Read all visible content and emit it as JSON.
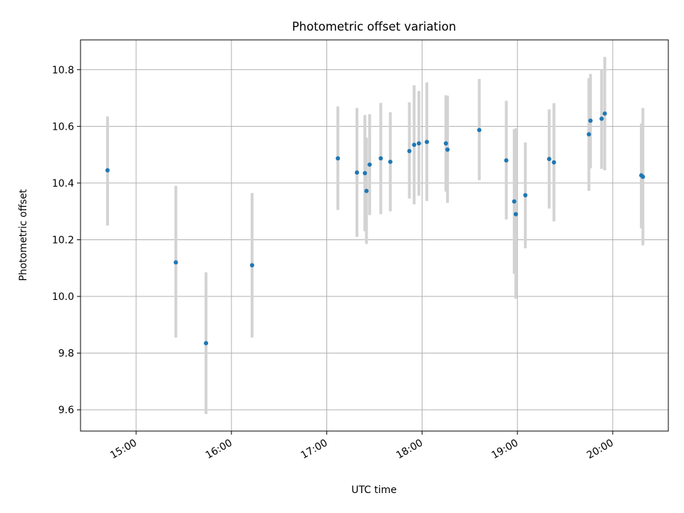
{
  "chart_data": {
    "type": "scatter",
    "title": "Photometric offset variation",
    "xlabel": "UTC time",
    "ylabel": "Photometric offset",
    "x_unit": "hours (UTC)",
    "xlim": [
      "14:25",
      "20:35"
    ],
    "ylim": [
      9.525,
      10.905
    ],
    "x_ticks": [
      {
        "value": "15:00",
        "label": "15:00"
      },
      {
        "value": "16:00",
        "label": "16:00"
      },
      {
        "value": "17:00",
        "label": "17:00"
      },
      {
        "value": "18:00",
        "label": "18:00"
      },
      {
        "value": "19:00",
        "label": "19:00"
      },
      {
        "value": "20:00",
        "label": "20:00"
      }
    ],
    "y_ticks": [
      {
        "value": 9.6,
        "label": "9.6"
      },
      {
        "value": 9.8,
        "label": "9.8"
      },
      {
        "value": 10.0,
        "label": "10.0"
      },
      {
        "value": 10.2,
        "label": "10.2"
      },
      {
        "value": 10.4,
        "label": "10.4"
      },
      {
        "value": 10.6,
        "label": "10.6"
      },
      {
        "value": 10.8,
        "label": "10.8"
      }
    ],
    "grid": true,
    "x_tick_rotation": "30 degrees",
    "colors": {
      "point": "#1f77b4",
      "errorbar": "#d3d3d3",
      "grid": "#b0b0b0"
    },
    "points": [
      {
        "x": "14:42",
        "y": 10.445,
        "low": 10.25,
        "high": 10.635
      },
      {
        "x": "15:25",
        "y": 10.12,
        "low": 9.855,
        "high": 10.39
      },
      {
        "x": "15:44",
        "y": 9.835,
        "low": 9.585,
        "high": 10.085
      },
      {
        "x": "16:13",
        "y": 10.11,
        "low": 9.855,
        "high": 10.365
      },
      {
        "x": "17:07",
        "y": 10.487,
        "low": 10.305,
        "high": 10.67
      },
      {
        "x": "17:19",
        "y": 10.437,
        "low": 10.21,
        "high": 10.665
      },
      {
        "x": "17:24",
        "y": 10.435,
        "low": 10.23,
        "high": 10.64
      },
      {
        "x": "17:25",
        "y": 10.372,
        "low": 10.185,
        "high": 10.56
      },
      {
        "x": "17:27",
        "y": 10.465,
        "low": 10.287,
        "high": 10.643
      },
      {
        "x": "17:34",
        "y": 10.487,
        "low": 10.29,
        "high": 10.683
      },
      {
        "x": "17:40",
        "y": 10.475,
        "low": 10.3,
        "high": 10.65
      },
      {
        "x": "17:52",
        "y": 10.513,
        "low": 10.345,
        "high": 10.685
      },
      {
        "x": "17:55",
        "y": 10.535,
        "low": 10.325,
        "high": 10.745
      },
      {
        "x": "17:58",
        "y": 10.54,
        "low": 10.355,
        "high": 10.725
      },
      {
        "x": "18:03",
        "y": 10.545,
        "low": 10.337,
        "high": 10.755
      },
      {
        "x": "18:15",
        "y": 10.54,
        "low": 10.37,
        "high": 10.71
      },
      {
        "x": "18:16",
        "y": 10.518,
        "low": 10.33,
        "high": 10.708
      },
      {
        "x": "18:36",
        "y": 10.587,
        "low": 10.41,
        "high": 10.767
      },
      {
        "x": "18:53",
        "y": 10.48,
        "low": 10.272,
        "high": 10.69
      },
      {
        "x": "18:58",
        "y": 10.335,
        "low": 10.08,
        "high": 10.59
      },
      {
        "x": "18:59",
        "y": 10.29,
        "low": 9.992,
        "high": 10.593
      },
      {
        "x": "19:05",
        "y": 10.357,
        "low": 10.17,
        "high": 10.543
      },
      {
        "x": "19:20",
        "y": 10.485,
        "low": 10.31,
        "high": 10.66
      },
      {
        "x": "19:23",
        "y": 10.473,
        "low": 10.265,
        "high": 10.682
      },
      {
        "x": "19:45",
        "y": 10.572,
        "low": 10.372,
        "high": 10.77
      },
      {
        "x": "19:46",
        "y": 10.62,
        "low": 10.452,
        "high": 10.785
      },
      {
        "x": "19:53",
        "y": 10.627,
        "low": 10.45,
        "high": 10.8
      },
      {
        "x": "19:55",
        "y": 10.645,
        "low": 10.445,
        "high": 10.845
      },
      {
        "x": "20:18",
        "y": 10.427,
        "low": 10.24,
        "high": 10.61
      },
      {
        "x": "20:19",
        "y": 10.422,
        "low": 10.18,
        "high": 10.665
      }
    ]
  }
}
